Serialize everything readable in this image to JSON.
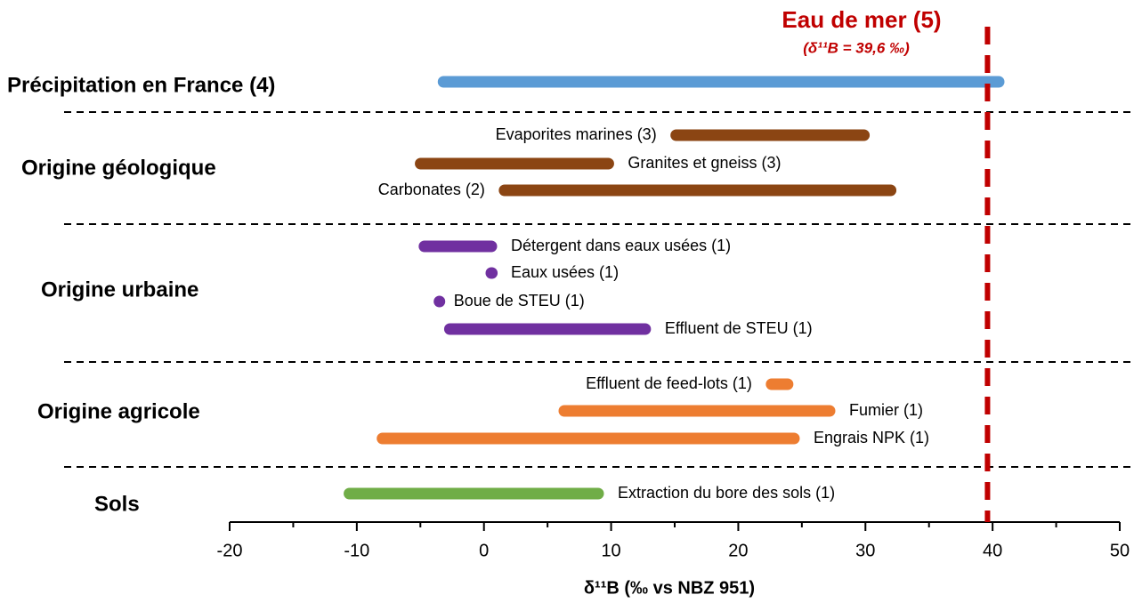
{
  "chart_data": {
    "type": "range",
    "reference_line": {
      "label": "Eau de mer (5)",
      "note": "(δ¹¹B = 39,6 ‰)",
      "value": 39.6,
      "color": "#c00000"
    },
    "xlabel": "δ¹¹B (‰ vs NBZ 951)",
    "xlim": [
      -20,
      50
    ],
    "xticks": [
      -20,
      -10,
      0,
      10,
      20,
      30,
      40,
      50
    ],
    "xminor_ticks": [
      -15,
      -5,
      5,
      15,
      25,
      35,
      45
    ],
    "groups": [
      {
        "name": "Précipitation en France (4)",
        "color": "#5b9bd5",
        "bars": [
          {
            "low": -3.6,
            "high": 40.9
          }
        ]
      },
      {
        "name": "Origine géologique",
        "color": "#8b4513",
        "bars": [
          {
            "name": "Evaporites marines (3)",
            "low": 14.7,
            "high": 30.3
          },
          {
            "name": "Granites et gneiss (3)",
            "low": -5.4,
            "high": 10.2
          },
          {
            "name": "Carbonates (2)",
            "low": 1.2,
            "high": 32.4
          }
        ]
      },
      {
        "name": "Origine urbaine",
        "color": "#7030a0",
        "bars": [
          {
            "name": "Détergent dans eaux usées (1)",
            "low": -5.1,
            "high": 1.0
          },
          {
            "name": "Eaux usées (1)",
            "low": 0.2,
            "high": 1.0
          },
          {
            "name": "Boue de STEU (1)",
            "low": -3.5,
            "high": -3.5
          },
          {
            "name": "Effluent de STEU (1)",
            "low": -3.1,
            "high": 13.1
          }
        ]
      },
      {
        "name": "Origine agricole",
        "color": "#ed7d31",
        "bars": [
          {
            "name": "Effluent de feed-lots (1)",
            "low": 22.2,
            "high": 24.3
          },
          {
            "name": "Fumier (1)",
            "low": 5.9,
            "high": 27.6
          },
          {
            "name": "Engrais NPK (1)",
            "low": -8.4,
            "high": 24.8
          }
        ]
      },
      {
        "name": "Sols",
        "color": "#70ad47",
        "bars": [
          {
            "name": "Extraction du bore des sols (1)",
            "low": -11,
            "high": 9.4
          }
        ]
      }
    ]
  }
}
